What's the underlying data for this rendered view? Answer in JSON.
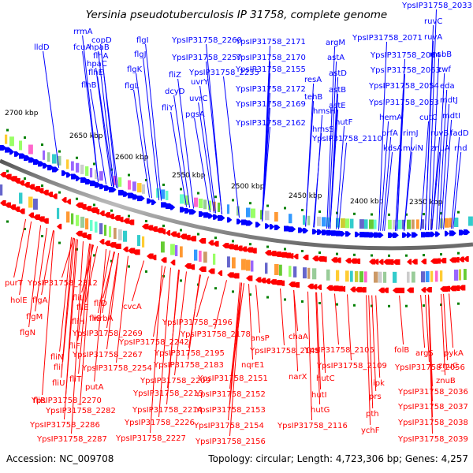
{
  "title": "Yersinia pseudotuberculosis IP 31758, complete genome",
  "footer": {
    "accession": "Accession: NC_009708",
    "summary": "Topology: circular; Length: 4,723,306 bp; Genes: 4,257"
  },
  "colors": {
    "forward_label": "#0000ff",
    "reverse_label": "#ff0000",
    "backbone": "#7a7a7a",
    "tick": "#008000"
  },
  "kbp_markers": [
    "2700 kbp",
    "2650 kbp",
    "2600 kbp",
    "2550 kbp",
    "2500 kbp",
    "2450 kbp",
    "2400 kbp",
    "2350 kbp"
  ],
  "forward_genes": [
    "lldD",
    "rrmA",
    "fcuA",
    "hpaB",
    "hpaC",
    "flhB",
    "flhE",
    "flhA",
    "copD",
    "flgI",
    "flgJ",
    "flgK",
    "flgL",
    "fliZ",
    "dcyD",
    "fliY",
    "YpsIP31758_2260",
    "YpsIP31758_2257",
    "YpsIP31758_2235",
    "uvrY",
    "uvrC",
    "pgsA",
    "YpsIP31758_2171",
    "YpsIP31758_2170",
    "YpsIP31758_2155",
    "YpsIP31758_2172",
    "YpsIP31758_2169",
    "YpsIP31758_2162",
    "argM",
    "astA",
    "astD",
    "resA",
    "astB",
    "tehB",
    "astE",
    "hmsH",
    "hutF",
    "hmsS",
    "YpsIP31758_2110",
    "YpsIP31758_2033",
    "ruvC",
    "YpsIP31758_2071",
    "ruvA",
    "msbB",
    "YpsIP31758_2064",
    "YpsIP31758_2063",
    "zwf",
    "YpsIP31758_2054",
    "eda",
    "YpsIP31758_2053",
    "mdtJ",
    "hemA",
    "cutC",
    "mdtI",
    "prfA",
    "rimJ",
    "ruvB",
    "fadD",
    "kdsA",
    "mviN",
    "znuA",
    "rnd"
  ],
  "reverse_genes": [
    "purT",
    "YpsIP31758_2312",
    "holE",
    "flgA",
    "flgM",
    "flgN",
    "fliL",
    "fliE",
    "fliD",
    "fliH",
    "fliS",
    "cvcA",
    "YpsIP31758_2269",
    "wrbA",
    "YpsIP31758_2242",
    "YpsIP31758_2196",
    "YpsIP31758_2178",
    "fliF",
    "YpsIP31758_2267",
    "YpsIP31758_2195",
    "ansP",
    "chaA",
    "fliN",
    "YpsIP31758_2254",
    "YpsIP31758_2183",
    "YpsIP31758_2145",
    "fliI",
    "fliT",
    "YpsIP31758_2105",
    "folB",
    "argS",
    "pykA",
    "nqrE1",
    "fliU",
    "putA",
    "YpsIP31758_2209",
    "YpsIP31758_2151",
    "narX",
    "YpsIP31758_2109",
    "ipk",
    "YpsIP31758_2056",
    "znuC",
    "hutC",
    "znuB",
    "YpsIP31758_2270",
    "YpsIP31758_2213",
    "YpsIP31758_2152",
    "prs",
    "YpsIP31758_2036",
    "fliR",
    "hutI",
    "YpsIP31758_2282",
    "YpsIP31758_2214",
    "YpsIP31758_2153",
    "YpsIP31758_2037",
    "hutG",
    "YpsIP31758_2286",
    "YpsIP31758_2226",
    "pth",
    "YpsIP31758_2038",
    "YpsIP31758_2154",
    "YpsIP31758_2116",
    "ychF",
    "YpsIP31758_2287",
    "YpsIP31758_2227",
    "YpsIP31758_2156",
    "YpsIP31758_2039"
  ]
}
